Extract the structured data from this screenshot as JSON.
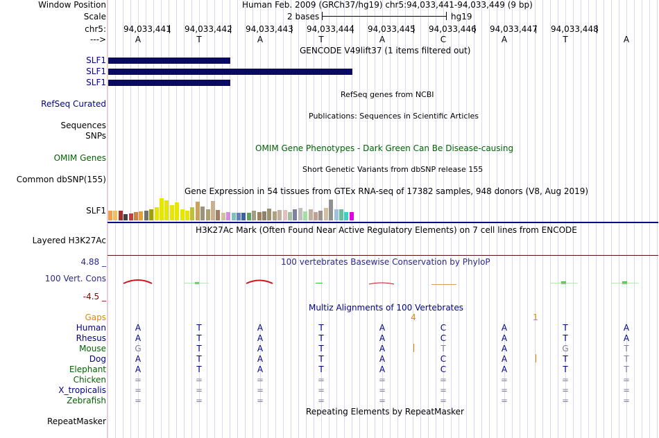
{
  "header": {
    "window_position_label": "Window Position",
    "assembly": "Human Feb. 2009 (GRCh37/hg19)",
    "position": "chr5:94,033,441-94,033,449 (9 bp)",
    "scale_label": "Scale",
    "scale_value": "2 bases",
    "scale_db": "hg19",
    "chrom_label": "chr5:",
    "strand_label": "--->",
    "coordinates": [
      "94,033,441",
      "94,033,442",
      "94,033,443",
      "94,033,444",
      "94,033,445",
      "94,033,446",
      "94,033,447",
      "94,033,448"
    ],
    "bases": [
      "A",
      "T",
      "A",
      "T",
      "A",
      "C",
      "A",
      "T",
      "A"
    ]
  },
  "gencode": {
    "title": "GENCODE V49lift37 (1 items filtered out)",
    "items": [
      "SLF1",
      "SLF1",
      "SLF1"
    ]
  },
  "refseq": {
    "title": "RefSeq genes from NCBI",
    "label": "RefSeq Curated"
  },
  "publications": {
    "title": "Publications: Sequences in Scientific Articles",
    "labels": [
      "Sequences",
      "SNPs"
    ]
  },
  "omim": {
    "title": "OMIM Gene Phenotypes - Dark Green Can Be Disease-causing",
    "label": "OMIM Genes"
  },
  "dbsnp": {
    "title": "Short Genetic Variants from dbSNP release 155",
    "label": "Common dbSNP(155)"
  },
  "gtex": {
    "title": "Gene Expression in 54 tissues from GTEx RNA-seq of 17382 samples, 948 donors (V8, Aug 2019)",
    "label": "SLF1"
  },
  "h3k27ac": {
    "title": "H3K27Ac Mark (Often Found Near Active Regulatory Elements) on 7 cell lines from ENCODE",
    "label": "Layered H3K27Ac"
  },
  "phylop": {
    "title": "100 vertebrates Basewise Conservation by PhyloP",
    "label": "100 Vert. Cons",
    "max": "4.88 _",
    "min": "-4.5 _"
  },
  "multiz": {
    "title": "Multiz Alignments of 100 Vertebrates",
    "gaps_label": "Gaps",
    "gap_numbers": [
      "4",
      "1"
    ],
    "species": [
      {
        "name": "Human",
        "color": "#00008b",
        "seq": [
          "A",
          "T",
          "A",
          "T",
          "A",
          "C",
          "A",
          "T",
          "A"
        ]
      },
      {
        "name": "Rhesus",
        "color": "#00008b",
        "seq": [
          "A",
          "T",
          "A",
          "T",
          "A",
          "C",
          "A",
          "T",
          "A"
        ]
      },
      {
        "name": "Mouse",
        "color": "#006400",
        "seq": [
          "G",
          "T",
          "A",
          "T",
          "A",
          "T",
          "A",
          "G",
          "T"
        ]
      },
      {
        "name": "Dog",
        "color": "#00008b",
        "seq": [
          "A",
          "T",
          "A",
          "T",
          "A",
          "C",
          "A",
          "T",
          "T"
        ]
      },
      {
        "name": "Elephant",
        "color": "#006400",
        "seq": [
          "A",
          "T",
          "A",
          "T",
          "A",
          "C",
          "A",
          "T",
          "T"
        ]
      },
      {
        "name": "Chicken",
        "color": "#006400",
        "seq": [
          "=",
          "=",
          "=",
          "=",
          "=",
          "=",
          "=",
          "=",
          "="
        ]
      },
      {
        "name": "X_tropicalis",
        "color": "#00008b",
        "seq": [
          "=",
          "=",
          "=",
          "=",
          "=",
          "=",
          "=",
          "=",
          "="
        ]
      },
      {
        "name": "Zebrafish",
        "color": "#006400",
        "seq": [
          "=",
          "=",
          "=",
          "=",
          "=",
          "=",
          "=",
          "=",
          "="
        ]
      }
    ]
  },
  "repeatmasker": {
    "title": "Repeating Elements by RepeatMasker",
    "label": "RepeatMasker"
  },
  "colors": {
    "gene_bar": "#0a0a66",
    "label_blue": "#00008b",
    "label_green": "#006400",
    "phylop_max": "#2a2a8a",
    "phylop_min": "#8b0000",
    "gaps": "#e08a00"
  }
}
